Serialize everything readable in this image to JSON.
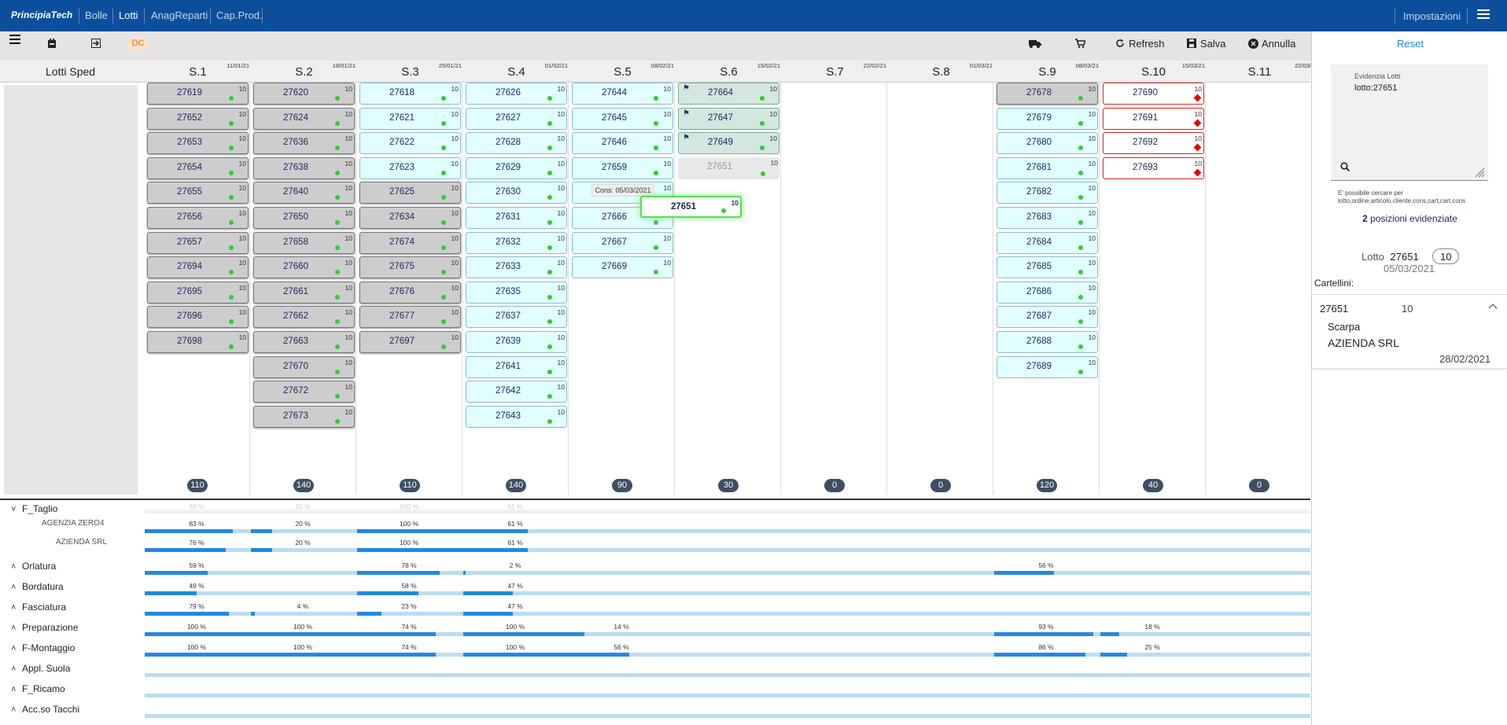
{
  "app": {
    "brand": "PrincipiaTech",
    "nav": [
      "Bolle",
      "Lotti",
      "AnagReparti",
      "Cap.Prod."
    ],
    "active_nav": "Lotti",
    "settings_label": "Impostazioni"
  },
  "toolbar": {
    "dc_label": "DC",
    "refresh_label": "Refresh",
    "save_label": "Salva",
    "cancel_label": "Annulla"
  },
  "board": {
    "left_header": "Lotti Sped",
    "weeks": [
      {
        "name": "S.1",
        "date": "11/01/21",
        "total": "110"
      },
      {
        "name": "S.2",
        "date": "18/01/21",
        "total": "140"
      },
      {
        "name": "S.3",
        "date": "25/01/21",
        "total": "110"
      },
      {
        "name": "S.4",
        "date": "01/02/21",
        "total": "140"
      },
      {
        "name": "S.5",
        "date": "08/02/21",
        "total": "90"
      },
      {
        "name": "S.6",
        "date": "15/02/21",
        "total": "30"
      },
      {
        "name": "S.7",
        "date": "22/02/21",
        "total": "0"
      },
      {
        "name": "S.8",
        "date": "01/03/21",
        "total": "0"
      },
      {
        "name": "S.9",
        "date": "08/03/21",
        "total": "120"
      },
      {
        "name": "S.10",
        "date": "15/03/21",
        "total": "40"
      },
      {
        "name": "S.11",
        "date": "22/03/",
        "total": "0"
      }
    ],
    "columns": [
      [
        [
          "27619",
          "grey"
        ],
        [
          "27652",
          "grey"
        ],
        [
          "27653",
          "grey"
        ],
        [
          "27654",
          "grey"
        ],
        [
          "27655",
          "grey"
        ],
        [
          "27656",
          "grey"
        ],
        [
          "27657",
          "grey"
        ],
        [
          "27694",
          "grey"
        ],
        [
          "27695",
          "grey"
        ],
        [
          "27696",
          "grey"
        ],
        [
          "27698",
          "grey"
        ]
      ],
      [
        [
          "27620",
          "grey"
        ],
        [
          "27624",
          "grey"
        ],
        [
          "27636",
          "grey"
        ],
        [
          "27638",
          "grey"
        ],
        [
          "27640",
          "grey"
        ],
        [
          "27650",
          "grey"
        ],
        [
          "27658",
          "grey"
        ],
        [
          "27660",
          "grey"
        ],
        [
          "27661",
          "grey"
        ],
        [
          "27662",
          "grey"
        ],
        [
          "27663",
          "grey"
        ],
        [
          "27670",
          "grey"
        ],
        [
          "27672",
          "grey"
        ],
        [
          "27673",
          "grey"
        ]
      ],
      [
        [
          "27618",
          "cyan"
        ],
        [
          "27621",
          "cyan"
        ],
        [
          "27622",
          "cyan"
        ],
        [
          "27623",
          "cyan"
        ],
        [
          "27625",
          "grey"
        ],
        [
          "27634",
          "grey"
        ],
        [
          "27674",
          "grey"
        ],
        [
          "27675",
          "grey"
        ],
        [
          "27676",
          "grey"
        ],
        [
          "27677",
          "grey"
        ],
        [
          "27697",
          "grey"
        ]
      ],
      [
        [
          "27626",
          "cyan"
        ],
        [
          "27627",
          "cyan"
        ],
        [
          "27628",
          "cyan"
        ],
        [
          "27629",
          "cyan"
        ],
        [
          "27630",
          "cyan"
        ],
        [
          "27631",
          "cyan"
        ],
        [
          "27632",
          "cyan"
        ],
        [
          "27633",
          "cyan"
        ],
        [
          "27635",
          "cyan"
        ],
        [
          "27637",
          "cyan"
        ],
        [
          "27639",
          "cyan"
        ],
        [
          "27641",
          "cyan"
        ],
        [
          "27642",
          "cyan"
        ],
        [
          "27643",
          "cyan"
        ]
      ],
      [
        [
          "27644",
          "cyan"
        ],
        [
          "27645",
          "cyan"
        ],
        [
          "27646",
          "cyan"
        ],
        [
          "27659",
          "cyan"
        ],
        [
          "",
          "cyan"
        ],
        [
          "27666",
          "cyan"
        ],
        [
          "27667",
          "cyan"
        ],
        [
          "27669",
          "cyan"
        ]
      ],
      [
        [
          "27664",
          "green"
        ],
        [
          "27647",
          "green"
        ],
        [
          "27649",
          "green"
        ],
        [
          "27651",
          "ghost"
        ]
      ],
      [],
      [],
      [
        [
          "27678",
          "grey"
        ],
        [
          "27679",
          "cyan"
        ],
        [
          "27680",
          "cyan"
        ],
        [
          "27681",
          "cyan"
        ],
        [
          "27682",
          "cyan"
        ],
        [
          "27683",
          "cyan"
        ],
        [
          "27684",
          "cyan"
        ],
        [
          "27685",
          "cyan"
        ],
        [
          "27686",
          "cyan"
        ],
        [
          "27687",
          "cyan"
        ],
        [
          "27688",
          "cyan"
        ],
        [
          "27689",
          "cyan"
        ]
      ],
      [
        [
          "27690",
          "red"
        ],
        [
          "27691",
          "red"
        ],
        [
          "27692",
          "red"
        ],
        [
          "27693",
          "red"
        ]
      ],
      []
    ],
    "lot_qty": "10",
    "drag": {
      "number": "27651",
      "qty": "10",
      "tooltip": "Cons: 05/03/2021"
    }
  },
  "departments": [
    {
      "label": "F_Taglio",
      "caret": "˅",
      "cells": [
        [
          0,
          "83 %",
          83
        ],
        [
          1,
          "20 %",
          20
        ],
        [
          2,
          "100 %",
          100
        ],
        [
          3,
          "61 %",
          61
        ]
      ],
      "faded": true,
      "subs": [
        {
          "label": "AGENZIA ZERO4",
          "cells": [
            [
              0,
              "83 %",
              83
            ],
            [
              1,
              "20 %",
              20
            ],
            [
              2,
              "100 %",
              100
            ],
            [
              3,
              "61 %",
              61
            ]
          ]
        },
        {
          "label": "AZIENDA SRL",
          "cells": [
            [
              0,
              "76 %",
              76
            ],
            [
              1,
              "20 %",
              20
            ],
            [
              2,
              "100 %",
              100
            ],
            [
              3,
              "61 %",
              61
            ]
          ]
        }
      ]
    },
    {
      "label": "Orlatura",
      "caret": "˄",
      "cells": [
        [
          0,
          "59 %",
          59
        ],
        [
          2,
          "78 %",
          78
        ],
        [
          3,
          "2 %",
          2
        ],
        [
          8,
          "56 %",
          56
        ]
      ]
    },
    {
      "label": "Bordatura",
      "caret": "˄",
      "cells": [
        [
          0,
          "49 %",
          49
        ],
        [
          2,
          "58 %",
          58
        ],
        [
          3,
          "47 %",
          47
        ]
      ]
    },
    {
      "label": "Fasciatura",
      "caret": "˄",
      "cells": [
        [
          0,
          "79 %",
          79
        ],
        [
          1,
          "4 %",
          4
        ],
        [
          2,
          "23 %",
          23
        ],
        [
          3,
          "47 %",
          47
        ]
      ]
    },
    {
      "label": "Preparazione",
      "caret": "˄",
      "cells": [
        [
          0,
          "100 %",
          100
        ],
        [
          1,
          "100 %",
          100
        ],
        [
          2,
          "74 %",
          74
        ],
        [
          3,
          "100 %",
          100
        ],
        [
          4,
          "14 %",
          14
        ],
        [
          8,
          "93 %",
          93
        ],
        [
          9,
          "18 %",
          18
        ]
      ]
    },
    {
      "label": "F-Montaggio",
      "caret": "˄",
      "cells": [
        [
          0,
          "100 %",
          100
        ],
        [
          1,
          "100 %",
          100
        ],
        [
          2,
          "74 %",
          74
        ],
        [
          3,
          "100 %",
          100
        ],
        [
          4,
          "56 %",
          56
        ],
        [
          8,
          "86 %",
          86
        ],
        [
          9,
          "25 %",
          25
        ]
      ]
    },
    {
      "label": "Appl. Suola",
      "caret": "˄",
      "cells": []
    },
    {
      "label": "F_Ricamo",
      "caret": "˄",
      "cells": []
    },
    {
      "label": "Acc.so Tacchi",
      "caret": "˄",
      "cells": []
    }
  ],
  "panel": {
    "reset": "Reset",
    "search_label": "Evidenzia Lotti",
    "search_value": "lotto:27651",
    "hint": "E' possibile cercare per lotto,ordine,articolo,cliente,cons,cart,cart.cons",
    "highlight_count": "2",
    "highlight_text": "posizioni evidenziate",
    "lot_label": "Lotto",
    "lot_number": "27651",
    "lot_qty": "10",
    "lot_date": "05/03/2021",
    "cartellini_label": "Cartellini:",
    "card": {
      "number": "27651",
      "qty": "10",
      "article": "Scarpa",
      "client": "AZIENDA SRL",
      "date": "28/02/2021"
    }
  },
  "colors": {
    "nav": "#0b4f9c",
    "accent": "#2389e3",
    "bar_bg": "#bcdcf0"
  }
}
